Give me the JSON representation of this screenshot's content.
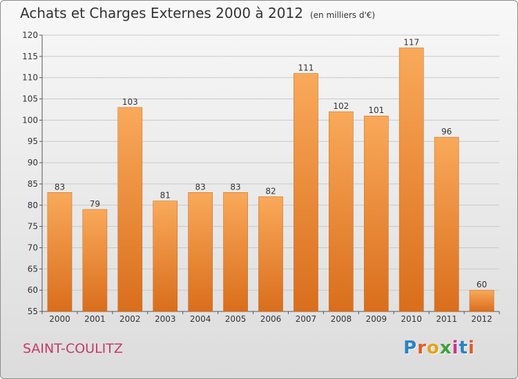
{
  "title": "Achats et Charges Externes 2000 à 2012",
  "unit_note": "(en milliers d'€)",
  "commune": "SAINT-COULITZ",
  "logo": {
    "text": "Proxiti",
    "letter_colors": [
      "#2a83c7",
      "#e05a2b",
      "#e3a21a",
      "#3aa23a",
      "#d32f8f",
      "#2a83c7",
      "#e05a2b"
    ]
  },
  "colors": {
    "bar_top": "#f9a95a",
    "bar_bottom": "#d96e1c",
    "grid": "#c8c8c8"
  },
  "chart_data": {
    "type": "bar",
    "categories": [
      "2000",
      "2001",
      "2002",
      "2003",
      "2004",
      "2005",
      "2006",
      "2007",
      "2008",
      "2009",
      "2010",
      "2011",
      "2012"
    ],
    "values": [
      83,
      79,
      103,
      81,
      83,
      83,
      82,
      111,
      102,
      101,
      117,
      96,
      60
    ],
    "data_labels": [
      "83",
      "79",
      "103",
      "81",
      "83",
      "83",
      "82",
      "111",
      "102",
      "101",
      "117",
      "96",
      "60"
    ],
    "ylim": [
      55,
      120
    ],
    "yticks": [
      55,
      60,
      65,
      70,
      75,
      80,
      85,
      90,
      95,
      100,
      105,
      110,
      115,
      120
    ],
    "grid": true,
    "legend": false
  }
}
